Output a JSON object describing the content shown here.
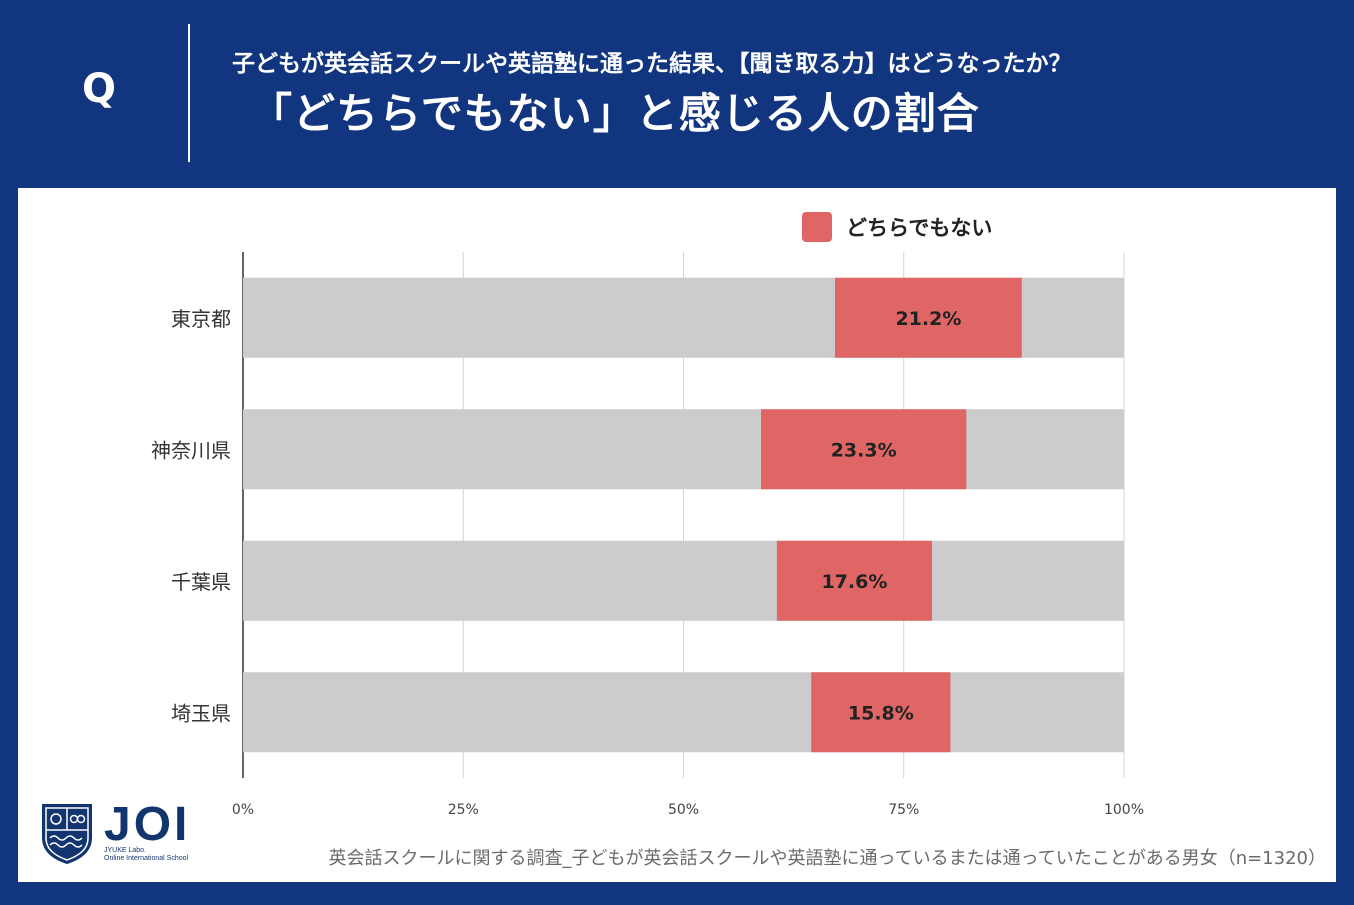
{
  "header": {
    "q_letter": "Q",
    "question": "子どもが英会話スクールや英語塾に通った結果、【聞き取る力】はどうなったか？",
    "title": "「どちらでもない」と感じる人の割合"
  },
  "colors": {
    "background": "#12357f",
    "bar_highlight": "#e06666",
    "bar_track": "#cccccc"
  },
  "legend": {
    "label": "どちらでもない"
  },
  "chart_data": {
    "type": "bar",
    "orientation": "horizontal",
    "stacked": true,
    "categories": [
      "東京都",
      "神奈川県",
      "千葉県",
      "埼玉県"
    ],
    "series": [
      {
        "name": "どちらでもない",
        "start_percent": [
          67.2,
          58.8,
          60.6,
          64.5
        ],
        "values": [
          21.2,
          23.3,
          17.6,
          15.8
        ],
        "labels": [
          "21.2%",
          "23.3%",
          "17.6%",
          "15.8%"
        ]
      }
    ],
    "xlim": [
      0,
      100
    ],
    "x_ticks": [
      "0%",
      "25%",
      "50%",
      "75%",
      "100%"
    ],
    "grid": true,
    "legend_position": "top"
  },
  "logo": {
    "text": "JOI",
    "sub1": "JYUKE Labo.",
    "sub2": "Online International School"
  },
  "footnote": "英会話スクールに関する調査_子どもが英会話スクールや英語塾に通っているまたは通っていたことがある男女（n=1320）"
}
